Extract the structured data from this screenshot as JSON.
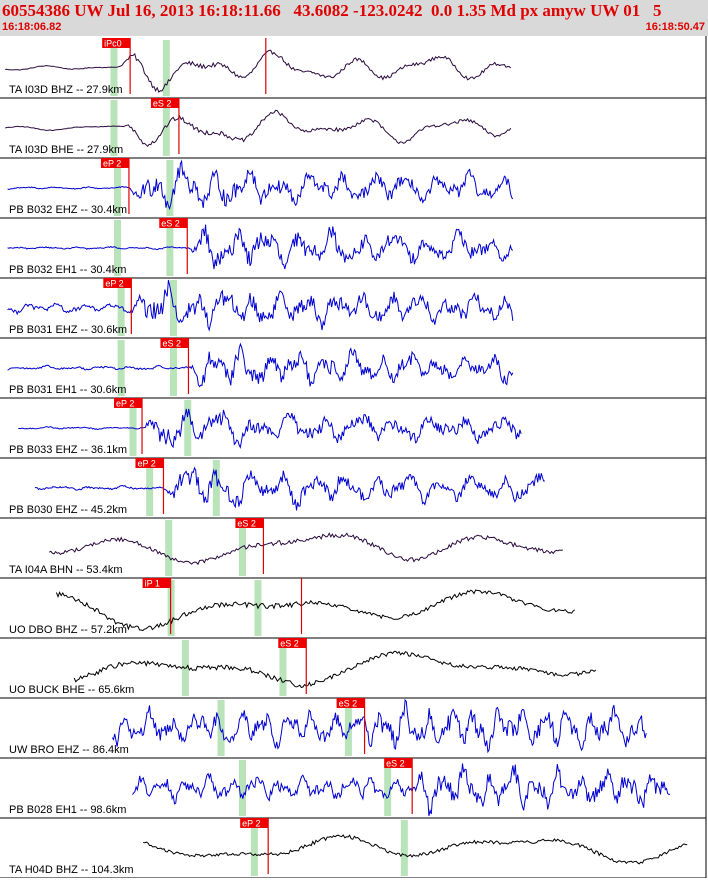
{
  "header": {
    "title": "60554386 UW Jul 16, 2013 16:18:11.66   43.6082 -123.0242  0.0 1.35 Md px amyw UW 01   5",
    "start_time": "16:18:06.82",
    "end_time": "16:18:50.47"
  },
  "colors": {
    "header_bg": "#d9d9d9",
    "header_text": "#e00000",
    "pick": "#e00000",
    "pick_label_bg": "#ee0000",
    "window": "#b9e3b9",
    "trace_dark": "#2a0a3e",
    "trace_blue": "#0000d0",
    "trace_black": "#000000"
  },
  "chart_data": {
    "type": "line",
    "title": "60554386 UW Jul 16, 2013 16:18:11.66   43.6082 -123.0242  0.0 1.35 Md px amyw UW 01   5",
    "x_start_label": "16:18:06.82",
    "x_end_label": "16:18:50.47",
    "x_range_seconds": [
      0,
      43.65
    ],
    "grid": false,
    "traces": [
      {
        "label": "TA I03D BHZ -- 27.9km",
        "color": "dark",
        "start": 0.1,
        "end": 42.6,
        "freq": 0.9,
        "noise": 0.12,
        "signal": 0.95,
        "sig_start": 9.7,
        "windows": [
          9.2,
          13.6
        ],
        "picks": [
          {
            "label": "iPc0",
            "t": 10.6
          },
          {
            "label": "",
            "t": 22.0
          }
        ],
        "extra_label": ""
      },
      {
        "label": "TA I03D BHE -- 27.9km",
        "color": "dark",
        "start": 0.1,
        "end": 42.6,
        "freq": 0.8,
        "noise": 0.12,
        "signal": 0.95,
        "sig_start": 10.0,
        "windows": [
          9.2,
          13.6
        ],
        "picks": [
          {
            "label": "eS 2",
            "t": 14.7
          }
        ],
        "extra_label": ""
      },
      {
        "label": "PB B032 EHZ -- 30.4km",
        "color": "blue",
        "start": 0.3,
        "end": 42.8,
        "freq": 2.2,
        "noise": 0.05,
        "signal": 0.95,
        "sig_start": 10.6,
        "windows": [
          9.5,
          13.9
        ],
        "picks": [
          {
            "label": "eP 2",
            "t": 10.5
          }
        ],
        "extra_label": ""
      },
      {
        "label": "PB B032 EH1 -- 30.4km",
        "color": "blue",
        "start": 0.3,
        "end": 42.8,
        "freq": 2.2,
        "noise": 0.05,
        "signal": 0.95,
        "sig_start": 15.6,
        "windows": [
          9.5,
          13.9
        ],
        "picks": [
          {
            "label": "eS 2",
            "t": 15.4
          }
        ],
        "extra_label": ""
      },
      {
        "label": "PB B031 EHZ -- 30.6km",
        "color": "blue",
        "start": 0.3,
        "end": 42.8,
        "freq": 2.5,
        "noise": 0.2,
        "signal": 0.9,
        "sig_start": 10.7,
        "windows": [
          9.8,
          14.2
        ],
        "picks": [
          {
            "label": "eP 2",
            "t": 10.7
          }
        ],
        "extra_label": ""
      },
      {
        "label": "PB B031 EH1 -- 30.6km",
        "color": "blue",
        "start": 0.3,
        "end": 42.8,
        "freq": 2.5,
        "noise": 0.08,
        "signal": 0.9,
        "sig_start": 15.6,
        "windows": [
          9.8,
          14.2
        ],
        "picks": [
          {
            "label": "eS 2",
            "t": 15.5
          }
        ],
        "extra_label": ""
      },
      {
        "label": "PB B033 EHZ -- 36.1km",
        "color": "blue",
        "start": 1.2,
        "end": 43.5,
        "freq": 2.0,
        "noise": 0.05,
        "signal": 0.85,
        "sig_start": 11.8,
        "windows": [
          10.8,
          15.4
        ],
        "picks": [
          {
            "label": "eP 2",
            "t": 11.6
          }
        ],
        "extra_label": ""
      },
      {
        "label": "PB B030 EHZ -- 45.2km",
        "color": "blue",
        "start": 2.6,
        "end": 45.5,
        "freq": 2.2,
        "noise": 0.08,
        "signal": 0.9,
        "sig_start": 13.6,
        "windows": [
          12.2,
          17.8
        ],
        "picks": [
          {
            "label": "eP 2",
            "t": 13.4
          }
        ],
        "extra_label": ""
      },
      {
        "label": "TA I04A BHN -- 53.4km",
        "color": "dark",
        "start": 3.8,
        "end": 47.0,
        "freq": 0.35,
        "noise": 0.7,
        "signal": 0.85,
        "sig_start": 22.0,
        "windows": [
          13.8,
          20.0
        ],
        "picks": [
          {
            "label": "eS 2",
            "t": 21.8
          }
        ],
        "extra_label": ""
      },
      {
        "label": "UO DBO BHZ -- 57.2km",
        "color": "black",
        "start": 4.4,
        "end": 48.0,
        "freq": 0.3,
        "noise": 0.9,
        "signal": 0.7,
        "sig_start": 26.0,
        "windows": [
          14.0,
          21.3
        ],
        "picks": [
          {
            "label": "iP 1",
            "t": 14.0
          },
          {
            "label": "",
            "t": 25.0
          }
        ],
        "extra_label": ""
      },
      {
        "label": "UO BUCK BHE -- 65.6km",
        "color": "black",
        "start": 5.9,
        "end": 49.8,
        "freq": 0.3,
        "noise": 0.9,
        "signal": 0.7,
        "sig_start": 25.4,
        "windows": [
          15.2,
          23.4
        ],
        "picks": [
          {
            "label": "eS 2",
            "t": 25.4
          }
        ],
        "extra_label": ""
      },
      {
        "label": "UW BRO EHZ -- 86.4km",
        "color": "blue",
        "start": 9.1,
        "end": 54.0,
        "freq": 3.0,
        "noise": 0.7,
        "signal": 0.95,
        "sig_start": 30.4,
        "windows": [
          18.2,
          28.9
        ],
        "picks": [
          {
            "label": "eS 2",
            "t": 30.3
          }
        ],
        "extra_label": ""
      },
      {
        "label": "PB B028 EH1 -- 98.6km",
        "color": "blue",
        "start": 10.8,
        "end": 56.0,
        "freq": 3.0,
        "noise": 0.5,
        "signal": 0.9,
        "sig_start": 34.5,
        "windows": [
          20.0,
          32.2
        ],
        "picks": [
          {
            "label": "eS 2",
            "t": 34.3
          }
        ],
        "extra_label": ""
      },
      {
        "label": "TA H04D BHZ -- 104.3km",
        "color": "black",
        "start": 11.7,
        "end": 57.5,
        "freq": 0.35,
        "noise": 0.55,
        "signal": 0.7,
        "sig_start": 22.4,
        "windows": [
          21.0,
          33.6
        ],
        "picks": [
          {
            "label": "eP 2",
            "t": 22.2
          }
        ],
        "extra_label": ""
      }
    ]
  }
}
